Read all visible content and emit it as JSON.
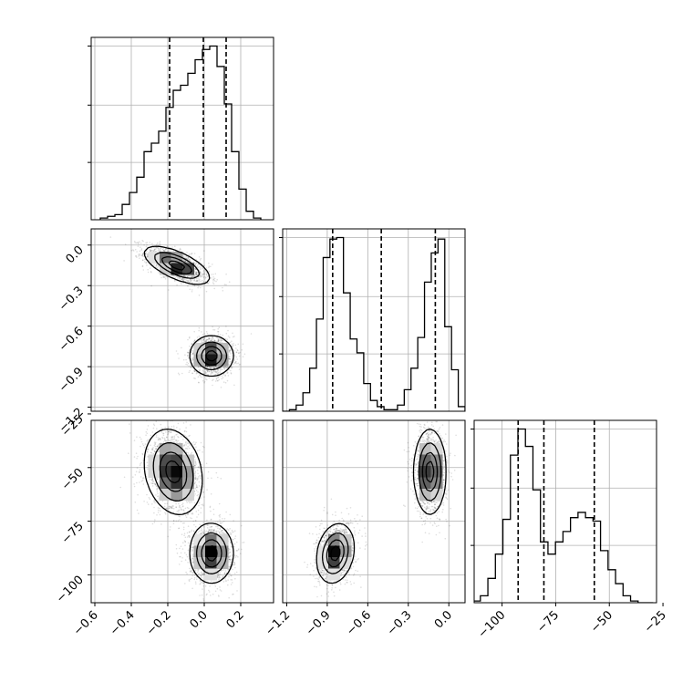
{
  "chart_data": {
    "type": "corner",
    "parameters": [
      {
        "range": [
          -0.62,
          0.38
        ],
        "ticks": [
          -0.6,
          -0.4,
          -0.2,
          0.0,
          0.2
        ],
        "tick_labels": [
          "−0.6",
          "−0.4",
          "−0.2",
          "0.0",
          "0.2"
        ],
        "quantiles": [
          -0.19,
          -0.005,
          0.12
        ],
        "hist_bins": [
          -0.57,
          -0.53,
          -0.49,
          -0.45,
          -0.41,
          -0.37,
          -0.33,
          -0.29,
          -0.25,
          -0.21,
          -0.17,
          -0.13,
          -0.09,
          -0.05,
          -0.01,
          0.03,
          0.07,
          0.11,
          0.15,
          0.19,
          0.23,
          0.27,
          0.31
        ],
        "hist_counts": [
          1,
          2,
          3,
          9,
          16,
          25,
          40,
          45,
          52,
          66,
          76,
          79,
          86,
          94,
          100,
          102,
          90,
          68,
          40,
          18,
          5,
          1
        ]
      },
      {
        "range": [
          -1.23,
          0.12
        ],
        "ticks": [
          -1.2,
          -0.9,
          -0.6,
          -0.3,
          0.0
        ],
        "tick_labels": [
          "−1.2",
          "−0.9",
          "−0.6",
          "−0.3",
          "0.0"
        ],
        "quantiles": [
          -0.86,
          -0.5,
          -0.1
        ],
        "hist_bins": [
          -1.23,
          -1.18,
          -1.13,
          -1.08,
          -1.03,
          -0.98,
          -0.93,
          -0.88,
          -0.83,
          -0.78,
          -0.73,
          -0.68,
          -0.63,
          -0.58,
          -0.53,
          -0.48,
          -0.43,
          -0.38,
          -0.33,
          -0.28,
          -0.23,
          -0.18,
          -0.13,
          -0.08,
          -0.03,
          0.02,
          0.07,
          0.12
        ],
        "hist_counts": [
          0,
          1,
          4,
          12,
          28,
          60,
          100,
          112,
          113,
          77,
          47,
          38,
          18,
          7,
          3,
          1,
          1,
          4,
          14,
          28,
          48,
          84,
          103,
          112,
          55,
          27,
          3
        ]
      },
      {
        "range": [
          -113,
          -28
        ],
        "ticks": [
          -100,
          -75,
          -50,
          -25
        ],
        "tick_labels": [
          "−100",
          "−75",
          "−50",
          "−25"
        ],
        "quantiles": [
          -92.5,
          -80.5,
          -57.0
        ],
        "hist_bins": [
          -113.6,
          -110.1,
          -106.6,
          -103.1,
          -99.6,
          -96.1,
          -92.6,
          -89.1,
          -85.6,
          -82.1,
          -78.6,
          -75.1,
          -71.6,
          -68.1,
          -64.6,
          -61.1,
          -57.6,
          -54.1,
          -50.6,
          -47.1,
          -43.6,
          -40.1,
          -36.6,
          -33.1,
          -29.6
        ],
        "hist_counts": [
          1,
          4,
          14,
          28,
          48,
          85,
          100,
          90,
          65,
          35,
          28,
          35,
          41,
          49,
          52,
          49,
          47,
          30,
          19,
          11,
          4,
          1,
          0,
          0
        ]
      }
    ],
    "pairs": [
      {
        "x_param": 0,
        "y_param": 1,
        "modes": [
          {
            "x": -0.15,
            "y": -0.15,
            "sx": 0.09,
            "sy": 0.07,
            "rho": -0.65
          },
          {
            "x": 0.04,
            "y": -0.82,
            "sx": 0.06,
            "sy": 0.075,
            "rho": 0.0
          }
        ]
      },
      {
        "x_param": 0,
        "y_param": 2,
        "modes": [
          {
            "x": -0.17,
            "y": -52,
            "sx": 0.08,
            "sy": 10,
            "rho": -0.2
          },
          {
            "x": 0.04,
            "y": -90,
            "sx": 0.06,
            "sy": 7,
            "rho": 0.0
          }
        ]
      },
      {
        "x_param": 1,
        "y_param": 2,
        "modes": [
          {
            "x": -0.84,
            "y": -90,
            "sx": 0.07,
            "sy": 7,
            "rho": 0.2
          },
          {
            "x": -0.14,
            "y": -52,
            "sx": 0.06,
            "sy": 10,
            "rho": 0.0
          }
        ]
      }
    ],
    "grid": true
  }
}
